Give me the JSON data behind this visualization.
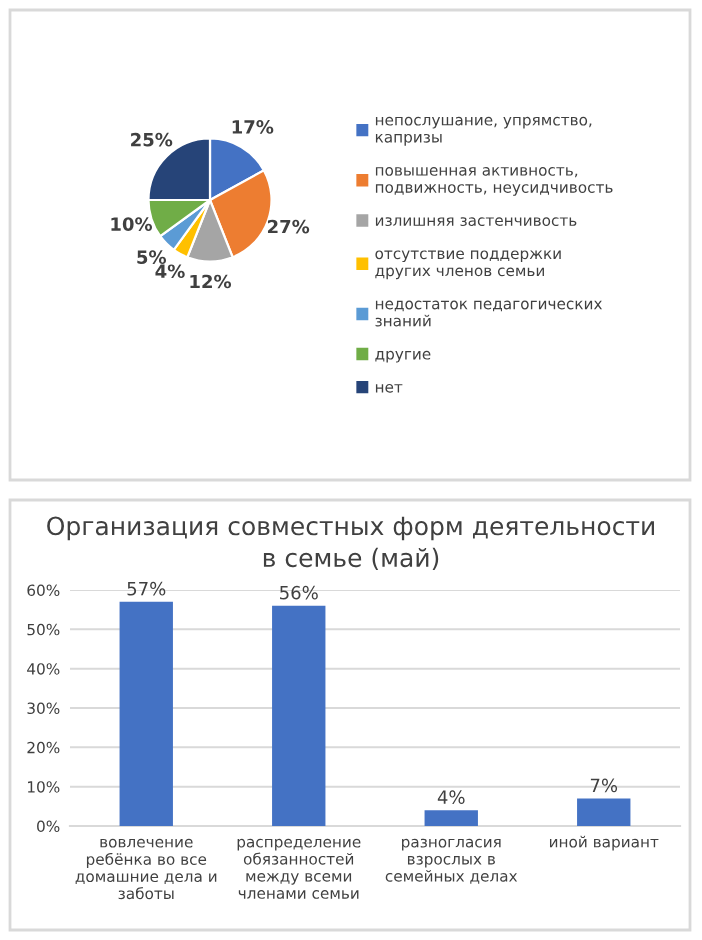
{
  "chart_data": [
    {
      "type": "pie",
      "categories": [
        "непослушание, упрямство,\nкапризы",
        "повышенная активность,\nподвижность, неусидчивость",
        "излишняя застенчивость",
        "отсутствие поддержки\nдругих членов семьи",
        "недостаток педагогических\nзнаний",
        "другие",
        "нет"
      ],
      "values": [
        17,
        27,
        12,
        4,
        5,
        10,
        25
      ],
      "colors": [
        "#4472c4",
        "#ed7d31",
        "#a5a5a5",
        "#ffc000",
        "#5b9bd5",
        "#70ad47",
        "#264478"
      ],
      "value_labels": [
        "17%",
        "27%",
        "12%",
        "4%",
        "5%",
        "10%",
        "25%"
      ],
      "legend": "right"
    },
    {
      "type": "bar",
      "title": "Организация совместных форм деятельности\nв семье (май)",
      "categories": [
        "вовлечение\nребёнка во все\nдомашние дела и\nзаботы",
        "распределение\nобязанностей\nмежду всеми\nчленами семьи",
        "разногласия\nвзрослых в\nсемейных делах",
        "иной вариант"
      ],
      "values": [
        57,
        56,
        4,
        7
      ],
      "color": "#4472c4",
      "value_labels": [
        "57%",
        "56%",
        "4%",
        "7%"
      ],
      "ylim": [
        0,
        60
      ],
      "yticks": [
        {
          "value": 0,
          "label": "0%"
        },
        {
          "value": 10,
          "label": "10%"
        },
        {
          "value": 20,
          "label": "20%"
        },
        {
          "value": 30,
          "label": "30%"
        },
        {
          "value": 40,
          "label": "40%"
        },
        {
          "value": 50,
          "label": "50%"
        },
        {
          "value": 60,
          "label": "60%"
        }
      ],
      "grid": "y"
    }
  ]
}
